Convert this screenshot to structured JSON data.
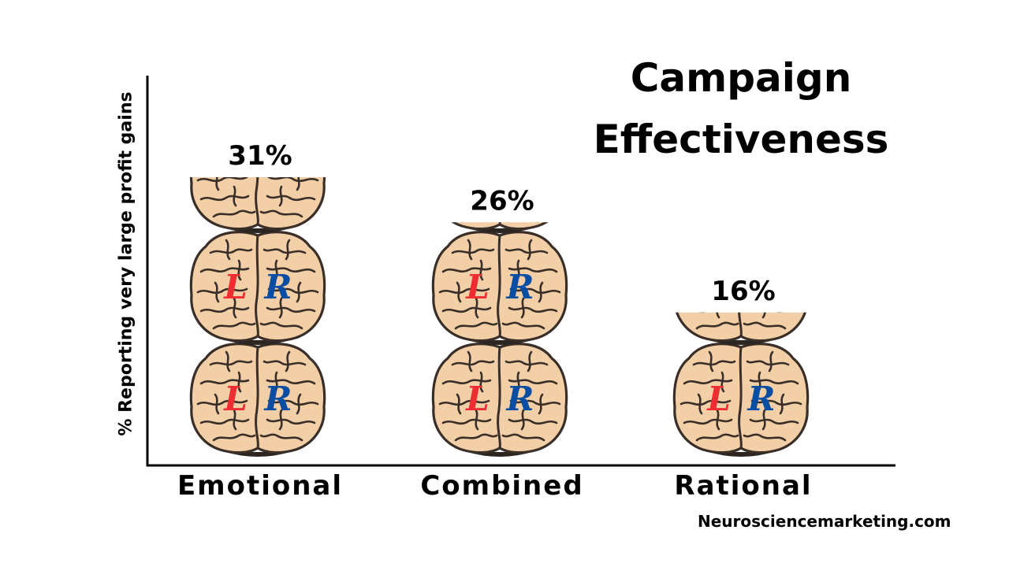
{
  "colors": {
    "brain_fill": "#f2cfa6",
    "brain_stroke": "#3a2f28",
    "left_letter": "#ee2d33",
    "right_letter": "#0a4ea3",
    "axis": "#000000"
  },
  "brain_letters": {
    "left": "L",
    "right": "R"
  },
  "source": "Neurosciencemarketing.com",
  "chart_data": {
    "type": "bar",
    "title": "Campaign Effectiveness",
    "ylabel": "% Reporting very large profit gains",
    "xlabel": "",
    "categories": [
      "Emotional",
      "Combined",
      "Rational"
    ],
    "values": [
      31,
      26,
      16
    ],
    "value_labels": [
      "31%",
      "26%",
      "16%"
    ],
    "ylim": [
      0,
      31
    ],
    "grid": false,
    "legend": "none"
  }
}
